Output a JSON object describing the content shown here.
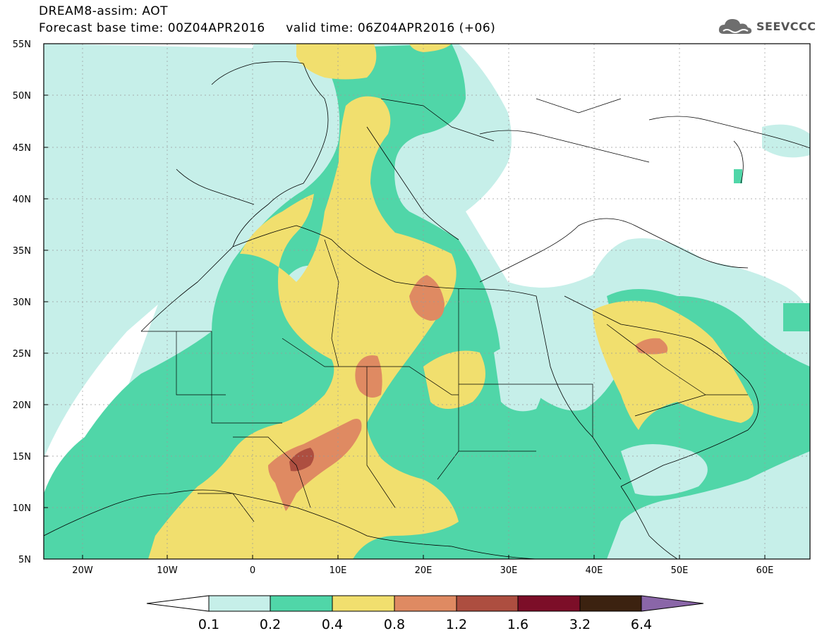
{
  "title": {
    "line1": "DREAM8-assim: AOT",
    "base_time": "Forecast base time: 00Z04APR2016",
    "valid_time": "valid time: 06Z04APR2016 (+06)"
  },
  "logo": {
    "text": "SEEVCCC",
    "icon": "cloud-icon"
  },
  "map": {
    "latitude_labels": [
      "55N",
      "50N",
      "45N",
      "40N",
      "35N",
      "30N",
      "25N",
      "20N",
      "15N",
      "10N",
      "5N"
    ],
    "longitude_labels": [
      "20W",
      "10W",
      "0",
      "10E",
      "20E",
      "30E",
      "40E",
      "50E",
      "60E"
    ],
    "lon_range": [
      -25,
      65
    ],
    "lat_range": [
      5,
      55
    ]
  },
  "colorbar": {
    "labels": [
      "0.1",
      "0.2",
      "0.4",
      "0.8",
      "1.2",
      "1.6",
      "3.2",
      "6.4"
    ],
    "colors": [
      "#ffffff",
      "#c6efe9",
      "#50d6a8",
      "#f1df6e",
      "#df8a62",
      "#ad4e40",
      "#7c0e28",
      "#3c2210",
      "#8a66a8"
    ]
  },
  "aot_levels": {
    "colors": {
      "0.1-0.2": "#c6efe9",
      "0.2-0.4": "#50d6a8",
      "0.4-0.8": "#f1df6e",
      "0.8-1.2": "#df8a62",
      "1.2-1.6": "#ad4e40"
    }
  }
}
